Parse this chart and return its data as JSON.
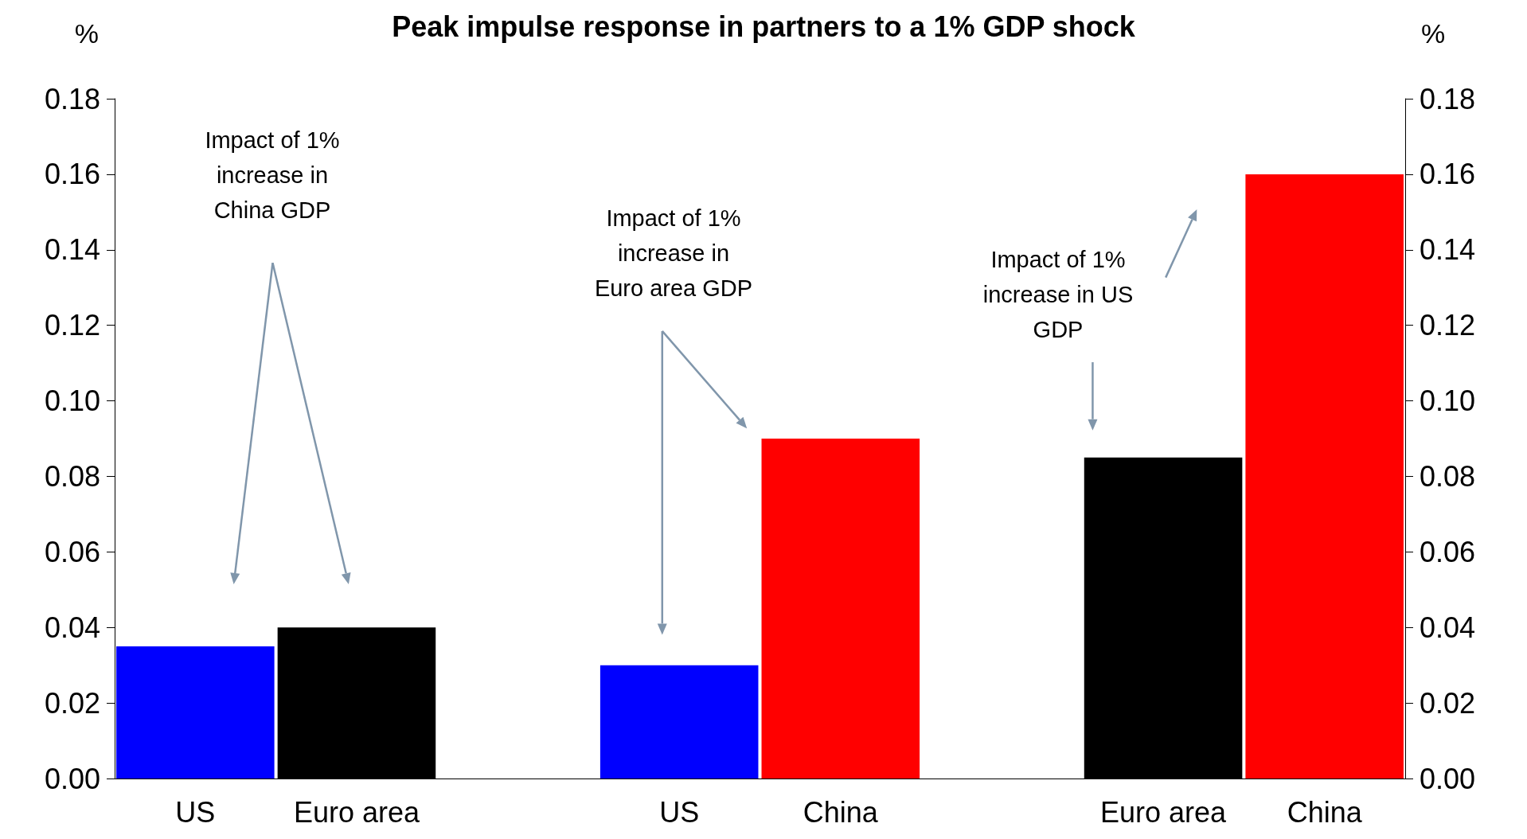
{
  "chart_data": {
    "type": "bar",
    "title": "Peak impulse response in partners to a 1% GDP shock",
    "ylabel": "%",
    "y2label": "%",
    "categories": [
      "US",
      "Euro area",
      null,
      "US",
      "China",
      null,
      "Euro area",
      "China"
    ],
    "values": [
      0.035,
      0.04,
      null,
      0.03,
      0.09,
      null,
      0.085,
      0.16
    ],
    "colors": [
      "#0000ff",
      "#000000",
      null,
      "#0000ff",
      "#ff0000",
      null,
      "#000000",
      "#ff0000"
    ],
    "ylim": [
      0,
      0.18
    ],
    "yticks": [
      {
        "value": 0,
        "label": "0.00"
      },
      {
        "value": 0.02,
        "label": "0.02"
      },
      {
        "value": 0.04,
        "label": "0.04"
      },
      {
        "value": 0.06,
        "label": "0.06"
      },
      {
        "value": 0.08,
        "label": "0.08"
      },
      {
        "value": 0.1,
        "label": "0.10"
      },
      {
        "value": 0.12,
        "label": "0.12"
      },
      {
        "value": 0.14,
        "label": "0.14"
      },
      {
        "value": 0.16,
        "label": "0.16"
      },
      {
        "value": 0.18,
        "label": "0.18"
      }
    ],
    "y2lim": [
      0,
      0.18
    ],
    "y2ticks": [
      {
        "value": 0,
        "label": "0.00"
      },
      {
        "value": 0.02,
        "label": "0.02"
      },
      {
        "value": 0.04,
        "label": "0.04"
      },
      {
        "value": 0.06,
        "label": "0.06"
      },
      {
        "value": 0.08,
        "label": "0.08"
      },
      {
        "value": 0.1,
        "label": "0.10"
      },
      {
        "value": 0.12,
        "label": "0.12"
      },
      {
        "value": 0.14,
        "label": "0.14"
      },
      {
        "value": 0.16,
        "label": "0.16"
      },
      {
        "value": 0.18,
        "label": "0.18"
      }
    ],
    "annotations": [
      "Impact of 1%\nincrease in\nChina GDP",
      "Impact of 1%\nincrease in\nEuro area GDP",
      "Impact of 1%\nincrease in US\nGDP"
    ],
    "grid": false
  }
}
